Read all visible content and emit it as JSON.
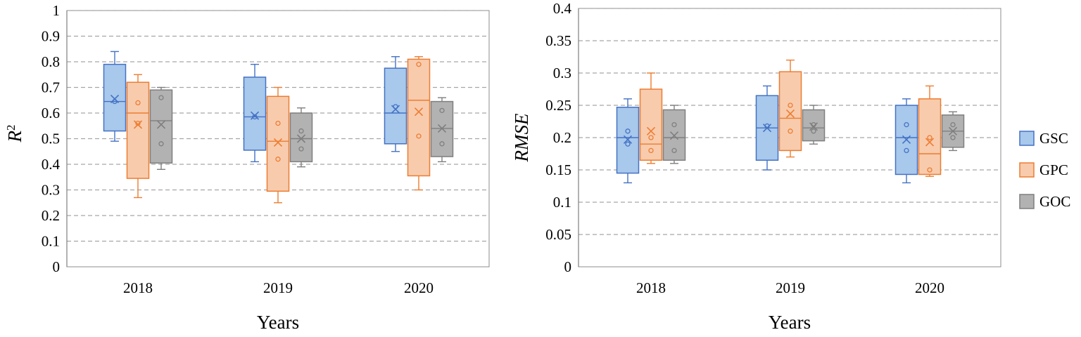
{
  "legend": [
    {
      "name": "GSC",
      "fill": "#a8c8ec",
      "stroke": "#4472c4"
    },
    {
      "name": "GPC",
      "fill": "#f8cbad",
      "stroke": "#ed7d31"
    },
    {
      "name": "GOC",
      "fill": "#b2b2b2",
      "stroke": "#7f7f7f"
    }
  ],
  "chart_data": [
    {
      "type": "box",
      "ylabel": "R",
      "ylabel_sup": "2",
      "xlabel": "Years",
      "ylim": [
        0,
        1
      ],
      "yticks": [
        "0",
        "0.1",
        "0.2",
        "0.3",
        "0.4",
        "0.5",
        "0.6",
        "0.7",
        "0.8",
        "0.9",
        "1"
      ],
      "ytick_values": [
        0,
        0.1,
        0.2,
        0.3,
        0.4,
        0.5,
        0.6,
        0.7,
        0.8,
        0.9,
        1
      ],
      "categories": [
        "2018",
        "2019",
        "2020"
      ],
      "series": [
        {
          "name": "GSC",
          "boxes": [
            {
              "min": 0.49,
              "q1": 0.53,
              "median": 0.645,
              "q3": 0.79,
              "max": 0.84,
              "mean": 0.655,
              "points": [
                0.645
              ]
            },
            {
              "min": 0.41,
              "q1": 0.455,
              "median": 0.585,
              "q3": 0.74,
              "max": 0.79,
              "mean": 0.59,
              "points": [
                0.585
              ]
            },
            {
              "min": 0.45,
              "q1": 0.48,
              "median": 0.6,
              "q3": 0.775,
              "max": 0.82,
              "mean": 0.615,
              "points": [
                0.625
              ]
            }
          ]
        },
        {
          "name": "GPC",
          "boxes": [
            {
              "min": 0.27,
              "q1": 0.345,
              "median": 0.6,
              "q3": 0.72,
              "max": 0.75,
              "mean": 0.555,
              "points": [
                0.64,
                0.56
              ]
            },
            {
              "min": 0.25,
              "q1": 0.295,
              "median": 0.49,
              "q3": 0.665,
              "max": 0.7,
              "mean": 0.485,
              "points": [
                0.56,
                0.42
              ]
            },
            {
              "min": 0.3,
              "q1": 0.355,
              "median": 0.65,
              "q3": 0.81,
              "max": 0.82,
              "mean": 0.605,
              "points": [
                0.79,
                0.51
              ]
            }
          ]
        },
        {
          "name": "GOC",
          "boxes": [
            {
              "min": 0.38,
              "q1": 0.405,
              "median": 0.57,
              "q3": 0.69,
              "max": 0.7,
              "mean": 0.555,
              "points": [
                0.66,
                0.48
              ]
            },
            {
              "min": 0.39,
              "q1": 0.41,
              "median": 0.5,
              "q3": 0.6,
              "max": 0.62,
              "mean": 0.5,
              "points": [
                0.53,
                0.46
              ]
            },
            {
              "min": 0.41,
              "q1": 0.43,
              "median": 0.54,
              "q3": 0.645,
              "max": 0.66,
              "mean": 0.54,
              "points": [
                0.61,
                0.48
              ]
            }
          ]
        }
      ]
    },
    {
      "type": "box",
      "ylabel": "RMSE",
      "ylabel_sup": "",
      "xlabel": "Years",
      "ylim": [
        0,
        0.4
      ],
      "yticks": [
        "0",
        "0.05",
        "0.1",
        "0.15",
        "0.2",
        "0.25",
        "0.3",
        "0.35",
        "0.4"
      ],
      "ytick_values": [
        0,
        0.05,
        0.1,
        0.15,
        0.2,
        0.25,
        0.3,
        0.35,
        0.4
      ],
      "categories": [
        "2018",
        "2019",
        "2020"
      ],
      "series": [
        {
          "name": "GSC",
          "boxes": [
            {
              "min": 0.13,
              "q1": 0.145,
              "median": 0.2,
              "q3": 0.247,
              "max": 0.26,
              "mean": 0.197,
              "points": [
                0.21,
                0.19
              ]
            },
            {
              "min": 0.15,
              "q1": 0.165,
              "median": 0.215,
              "q3": 0.265,
              "max": 0.28,
              "mean": 0.215,
              "points": [
                0.218
              ]
            },
            {
              "min": 0.13,
              "q1": 0.143,
              "median": 0.2,
              "q3": 0.25,
              "max": 0.26,
              "mean": 0.197,
              "points": [
                0.22,
                0.18
              ]
            }
          ]
        },
        {
          "name": "GPC",
          "boxes": [
            {
              "min": 0.16,
              "q1": 0.165,
              "median": 0.19,
              "q3": 0.275,
              "max": 0.3,
              "mean": 0.21,
              "points": [
                0.2,
                0.18
              ]
            },
            {
              "min": 0.17,
              "q1": 0.18,
              "median": 0.23,
              "q3": 0.302,
              "max": 0.32,
              "mean": 0.237,
              "points": [
                0.25,
                0.21
              ]
            },
            {
              "min": 0.14,
              "q1": 0.143,
              "median": 0.175,
              "q3": 0.26,
              "max": 0.28,
              "mean": 0.193,
              "points": [
                0.2,
                0.15
              ]
            }
          ]
        },
        {
          "name": "GOC",
          "boxes": [
            {
              "min": 0.16,
              "q1": 0.165,
              "median": 0.2,
              "q3": 0.243,
              "max": 0.25,
              "mean": 0.203,
              "points": [
                0.22,
                0.18
              ]
            },
            {
              "min": 0.19,
              "q1": 0.195,
              "median": 0.215,
              "q3": 0.243,
              "max": 0.25,
              "mean": 0.217,
              "points": [
                0.22,
                0.21
              ]
            },
            {
              "min": 0.18,
              "q1": 0.185,
              "median": 0.21,
              "q3": 0.235,
              "max": 0.24,
              "mean": 0.21,
              "points": [
                0.22,
                0.2
              ]
            }
          ]
        }
      ]
    }
  ]
}
